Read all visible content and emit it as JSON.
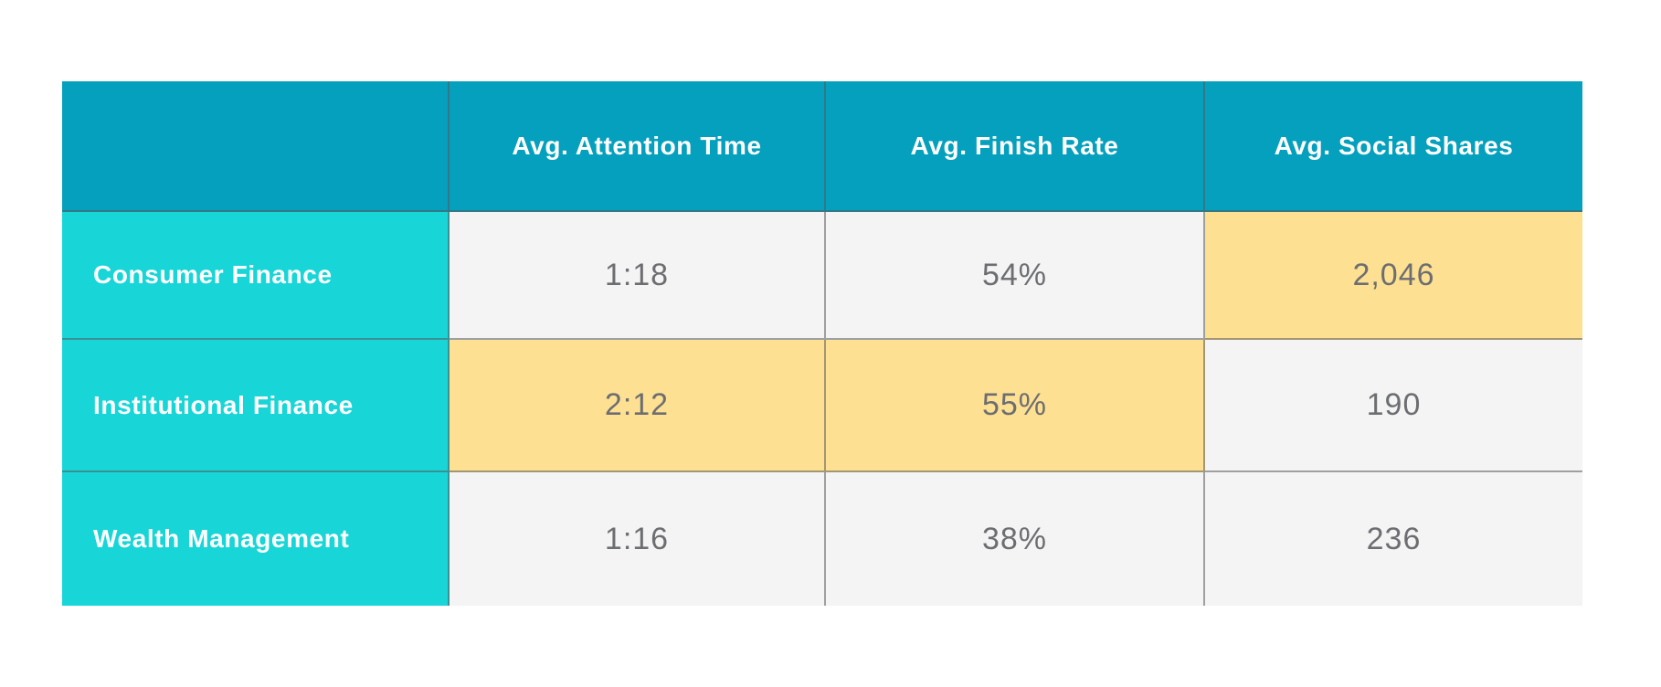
{
  "table": {
    "columns": [
      "",
      "Avg. Attention Time",
      "Avg. Finish Rate",
      "Avg. Social Shares"
    ],
    "rows": [
      {
        "label": "Consumer Finance",
        "values": [
          "1:18",
          "54%",
          "2,046"
        ],
        "highlights": [
          false,
          false,
          true
        ]
      },
      {
        "label": "Institutional Finance",
        "values": [
          "2:12",
          "55%",
          "190"
        ],
        "highlights": [
          true,
          true,
          false
        ]
      },
      {
        "label": "Wealth Management",
        "values": [
          "1:16",
          "38%",
          "236"
        ],
        "highlights": [
          false,
          false,
          false
        ]
      }
    ],
    "colors": {
      "header_bg": "#04A0BD",
      "row_label_bg": "#18D5D7",
      "cell_bg": "#F4F4F5",
      "highlight_bg": "#FDE092",
      "header_text": "#FFFFFF",
      "value_text": "#6D6E71",
      "gridline": "rgba(88,89,91,0.55)"
    }
  },
  "chart_data": {
    "type": "table",
    "title": "",
    "columns": [
      "",
      "Avg. Attention Time",
      "Avg. Finish Rate",
      "Avg. Social Shares"
    ],
    "rows": [
      [
        "Consumer Finance",
        "1:18",
        "54%",
        "2,046"
      ],
      [
        "Institutional Finance",
        "2:12",
        "55%",
        "190"
      ],
      [
        "Wealth Management",
        "1:16",
        "38%",
        "236"
      ]
    ],
    "highlighted_cells": [
      {
        "row": "Consumer Finance",
        "column": "Avg. Social Shares",
        "value": "2,046"
      },
      {
        "row": "Institutional Finance",
        "column": "Avg. Attention Time",
        "value": "2:12"
      },
      {
        "row": "Institutional Finance",
        "column": "Avg. Finish Rate",
        "value": "55%"
      }
    ],
    "legend_position": "none",
    "grid": true
  }
}
